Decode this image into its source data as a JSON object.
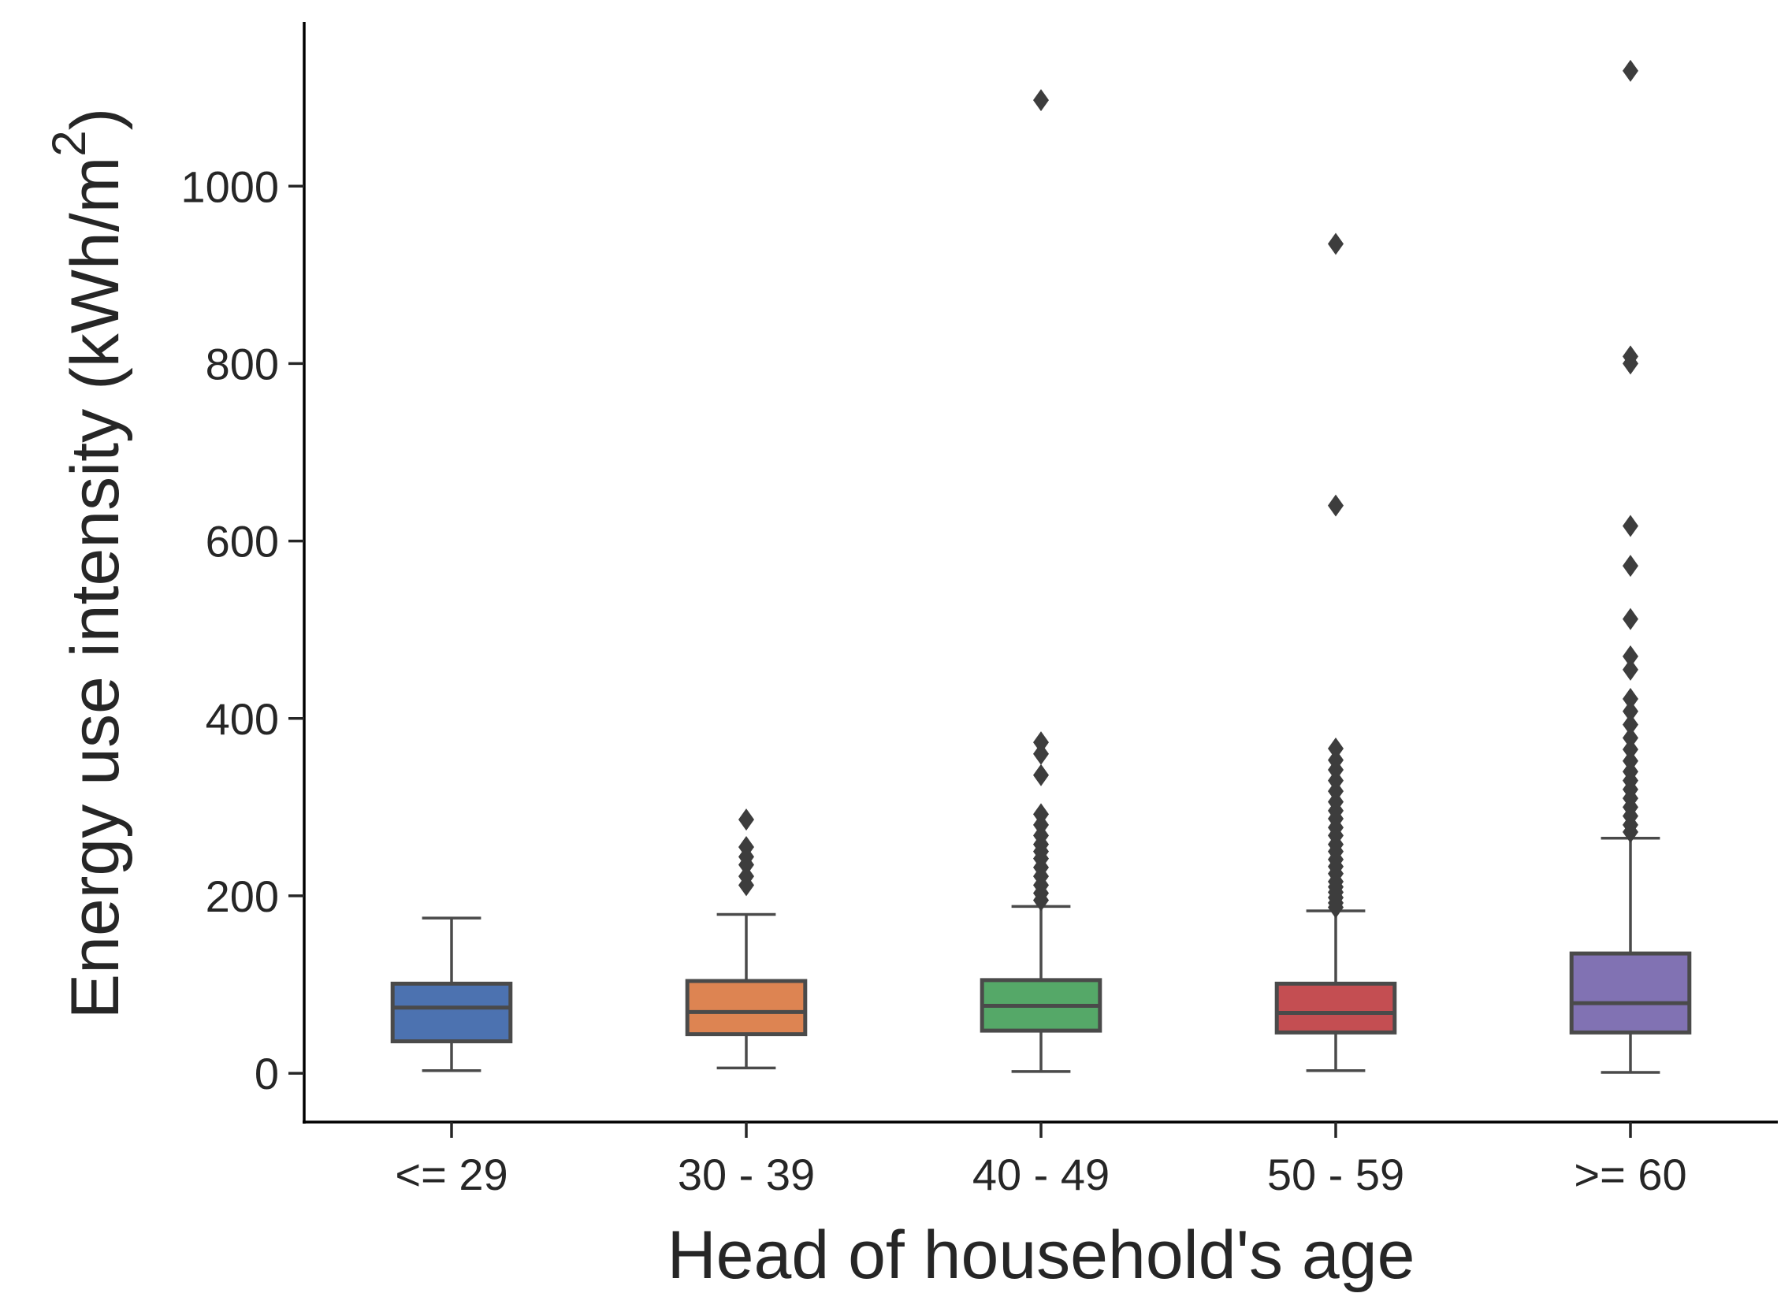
{
  "chart_data": {
    "type": "boxplot",
    "xlabel": "Head of household's age",
    "ylabel": "Energy use intensity (kWh/m",
    "ylabel_superscript": "2",
    "ylabel_close": ")",
    "ylim": [
      -55,
      1185
    ],
    "yticks": [
      0,
      200,
      400,
      600,
      800,
      1000
    ],
    "grid": false,
    "categories": [
      "<= 29",
      "30 - 39",
      "40 - 49",
      "50 - 59",
      ">= 60"
    ],
    "boxes": [
      {
        "category": "<= 29",
        "color": "#4c72b0",
        "whisker_low": 3,
        "q1": 36,
        "median": 74,
        "q3": 101,
        "whisker_high": 175,
        "outliers": []
      },
      {
        "category": "30 - 39",
        "color": "#dd8452",
        "whisker_low": 6,
        "q1": 44,
        "median": 69,
        "q3": 104,
        "whisker_high": 179,
        "outliers": [
          212,
          222,
          235,
          244,
          255,
          286
        ]
      },
      {
        "category": "40 - 49",
        "color": "#55a868",
        "whisker_low": 2,
        "q1": 48,
        "median": 76,
        "q3": 105,
        "whisker_high": 188,
        "outliers": [
          195,
          203,
          212,
          222,
          232,
          242,
          250,
          258,
          268,
          280,
          292,
          336,
          360,
          373,
          1097
        ]
      },
      {
        "category": "50 - 59",
        "color": "#c44e52",
        "whisker_low": 3,
        "q1": 46,
        "median": 68,
        "q3": 101,
        "whisker_high": 183,
        "outliers": [
          187,
          192,
          198,
          204,
          210,
          216,
          225,
          233,
          241,
          250,
          258,
          268,
          277,
          287,
          296,
          306,
          318,
          330,
          342,
          353,
          366,
          640,
          935
        ]
      },
      {
        "category": ">= 60",
        "color": "#8172b3",
        "whisker_low": 1,
        "q1": 46,
        "median": 79,
        "q3": 135,
        "whisker_high": 265,
        "outliers": [
          272,
          280,
          290,
          300,
          310,
          320,
          330,
          340,
          352,
          365,
          378,
          393,
          408,
          422,
          455,
          470,
          512,
          572,
          617,
          800,
          808,
          1130
        ]
      }
    ]
  }
}
